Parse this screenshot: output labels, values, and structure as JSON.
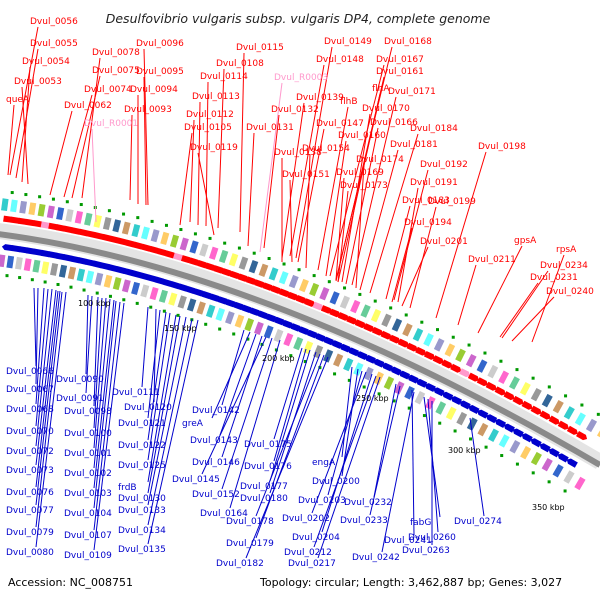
{
  "title": "Desulfovibrio vulgaris subsp. vulgaris DP4, complete genome",
  "accession_text": "Accession: NC_008751",
  "summary_text": "Topology: circular; Length: 3,462,887 bp; Genes: 3,027",
  "colors": {
    "forward": "#ff0000",
    "reverse": "#0000cc",
    "rna": "#ff99cc",
    "backbone": "#8a8a8a"
  },
  "ticks": [
    "100 kbp",
    "150 kbp",
    "200 kbp",
    "250 kbp",
    "300 kbp",
    "350 kbp"
  ],
  "forward_labels": [
    "Dvul_0056",
    "Dvul_0055",
    "Dvul_0054",
    "Dvul_0053",
    "queA",
    "Dvul_0078",
    "Dvul_0075",
    "Dvul_0074",
    "Dvul_0062",
    "Dvul_R0001",
    "Dvul_0096",
    "Dvul_0095",
    "Dvul_0094",
    "Dvul_0093",
    "Dvul_0105",
    "Dvul_0115",
    "Dvul_0108",
    "Dvul_0114",
    "Dvul_0113",
    "Dvul_0112",
    "Dvul_0119",
    "Dvul_R0003",
    "Dvul_0139",
    "Dvul_0132",
    "Dvul_0131",
    "Dvul_0138",
    "Dvul_0149",
    "Dvul_0148",
    "Dvul_0147",
    "Dvul_0154",
    "Dvul_0151",
    "Dvul_0168",
    "Dvul_0167",
    "Dvul_0161",
    "flhA",
    "flhB",
    "Dvul_0171",
    "Dvul_0170",
    "Dvul_0166",
    "Dvul_0160",
    "Dvul_0174",
    "Dvul_0169",
    "Dvul_0173",
    "Dvul_0184",
    "Dvul_0181",
    "Dvul_0198",
    "Dvul_0192",
    "Dvul_0191",
    "Dvul_0183",
    "Dvul_0199",
    "Dvul_0194",
    "Dvul_0201",
    "gpsA",
    "rpsA",
    "Dvul_0211",
    "Dvul_0234",
    "Dvul_0231",
    "Dvul_0240"
  ],
  "reverse_labels": [
    "Dvul_0066",
    "Dvul_0067",
    "Dvul_0068",
    "Dvul_0070",
    "Dvul_0072",
    "Dvul_0073",
    "Dvul_0076",
    "Dvul_0077",
    "Dvul_0079",
    "Dvul_0080",
    "Dvul_0090",
    "Dvul_0091",
    "Dvul_0098",
    "Dvul_0100",
    "Dvul_0101",
    "Dvul_0102",
    "Dvul_0103",
    "Dvul_0104",
    "Dvul_0107",
    "Dvul_0109",
    "Dvul_0111",
    "Dvul_0120",
    "Dvul_0121",
    "Dvul_0122",
    "Dvul_0125",
    "frdB",
    "Dvul_0130",
    "Dvul_0133",
    "Dvul_0134",
    "Dvul_0135",
    "Dvul_0142",
    "greA",
    "Dvul_0143",
    "Dvul_0146",
    "Dvul_0145",
    "Dvul_0152",
    "Dvul_0164",
    "Dvul_0175",
    "Dvul_0176",
    "Dvul_0177",
    "Dvul_0180",
    "Dvul_0178",
    "Dvul_0179",
    "Dvul_0182",
    "engA",
    "Dvul_0200",
    "Dvul_0203",
    "Dvul_0202",
    "Dvul_0204",
    "Dvul_0212",
    "Dvul_0217",
    "Dvul_0232",
    "Dvul_0233",
    "Dvul_0241",
    "Dvul_0242",
    "fabG",
    "Dvul_0260",
    "Dvul_0263",
    "Dvul_0274"
  ]
}
